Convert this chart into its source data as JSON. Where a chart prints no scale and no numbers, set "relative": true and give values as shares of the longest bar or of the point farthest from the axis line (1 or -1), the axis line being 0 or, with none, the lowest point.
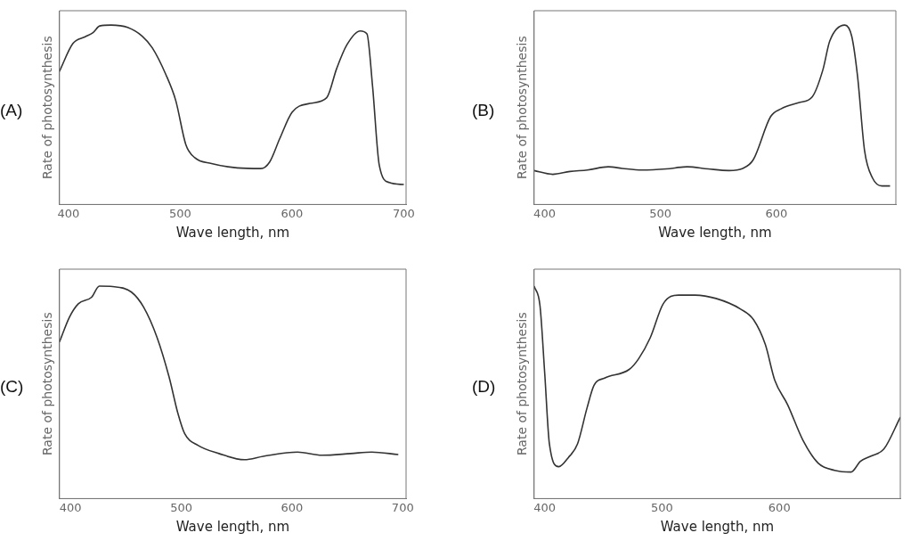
{
  "chart_data": [
    {
      "type": "line",
      "title": "(A)",
      "xlabel": "Wave length, nm",
      "ylabel": "Rate of photosynthesis",
      "relative": true,
      "xlim": [
        392,
        702
      ],
      "xticks": [
        400,
        500,
        600,
        700
      ],
      "marker": "none",
      "series": [
        {
          "color": "#333333",
          "x": [
            392,
            404,
            415,
            422,
            428,
            438,
            453,
            466,
            475,
            487,
            496,
            505,
            513,
            528,
            551,
            572,
            580,
            589,
            600,
            616,
            631,
            640,
            649,
            661,
            667,
            672,
            678,
            687,
            700
          ],
          "values": [
            0.742,
            0.897,
            0.935,
            0.958,
            0.995,
            1,
            0.987,
            0.938,
            0.873,
            0.726,
            0.579,
            0.334,
            0.261,
            0.228,
            0.204,
            0.2,
            0.237,
            0.367,
            0.514,
            0.563,
            0.595,
            0.759,
            0.889,
            0.967,
            0.951,
            0.661,
            0.22,
            0.122,
            0.111
          ]
        }
      ]
    },
    {
      "type": "line",
      "title": "(B)",
      "xlabel": "Wave length, nm",
      "ylabel": "Rate of photosynthesis",
      "relative": true,
      "xlim": [
        391,
        703
      ],
      "xticks": [
        400,
        500,
        600
      ],
      "marker": "none",
      "series": [
        {
          "color": "#333333",
          "x": [
            391,
            407,
            422,
            437,
            455,
            467,
            484,
            505,
            523,
            541,
            559,
            571,
            580,
            595,
            604,
            619,
            631,
            640,
            646,
            659,
            665,
            670,
            676,
            683,
            691,
            698
          ],
          "values": [
            0.189,
            0.168,
            0.184,
            0.192,
            0.21,
            0.201,
            0.192,
            0.198,
            0.21,
            0.198,
            0.189,
            0.201,
            0.249,
            0.49,
            0.533,
            0.567,
            0.601,
            0.749,
            0.911,
            1,
            0.936,
            0.713,
            0.301,
            0.146,
            0.103,
            0.103
          ]
        }
      ]
    },
    {
      "type": "line",
      "title": "(C)",
      "xlabel": "Wave length, nm",
      "ylabel": "Rate of photosynthesis",
      "relative": true,
      "xlim": [
        390,
        703
      ],
      "xticks": [
        400,
        500,
        600,
        700
      ],
      "marker": "none",
      "series": [
        {
          "color": "#333333",
          "x": [
            390,
            399,
            407,
            419,
            426,
            438,
            455,
            466,
            478,
            489,
            497,
            503,
            515,
            534,
            557,
            574,
            605,
            627,
            653,
            672,
            696
          ],
          "values": [
            0.737,
            0.854,
            0.917,
            0.948,
            1,
            0.998,
            0.972,
            0.901,
            0.76,
            0.572,
            0.4,
            0.306,
            0.251,
            0.212,
            0.183,
            0.199,
            0.219,
            0.204,
            0.212,
            0.219,
            0.207
          ]
        }
      ]
    },
    {
      "type": "line",
      "title": "(D)",
      "xlabel": "Wave length, nm",
      "ylabel": "Rate of photosynthesis",
      "relative": true,
      "xlim": [
        391,
        703
      ],
      "xticks": [
        400,
        500,
        600
      ],
      "marker": "none",
      "series": [
        {
          "color": "#333333",
          "x": [
            391,
            396,
            400,
            404,
            412,
            420,
            428,
            436,
            442,
            451,
            472,
            480,
            490,
            501,
            514,
            528,
            546,
            567,
            578,
            588,
            596,
            607,
            620,
            633,
            647,
            661,
            669,
            678,
            689,
            703
          ],
          "values": [
            1,
            0.908,
            0.592,
            0.258,
            0.15,
            0.192,
            0.258,
            0.425,
            0.533,
            0.567,
            0.608,
            0.658,
            0.758,
            0.917,
            0.958,
            0.958,
            0.942,
            0.892,
            0.842,
            0.725,
            0.558,
            0.442,
            0.275,
            0.167,
            0.133,
            0.125,
            0.175,
            0.2,
            0.233,
            0.383
          ]
        }
      ]
    }
  ]
}
